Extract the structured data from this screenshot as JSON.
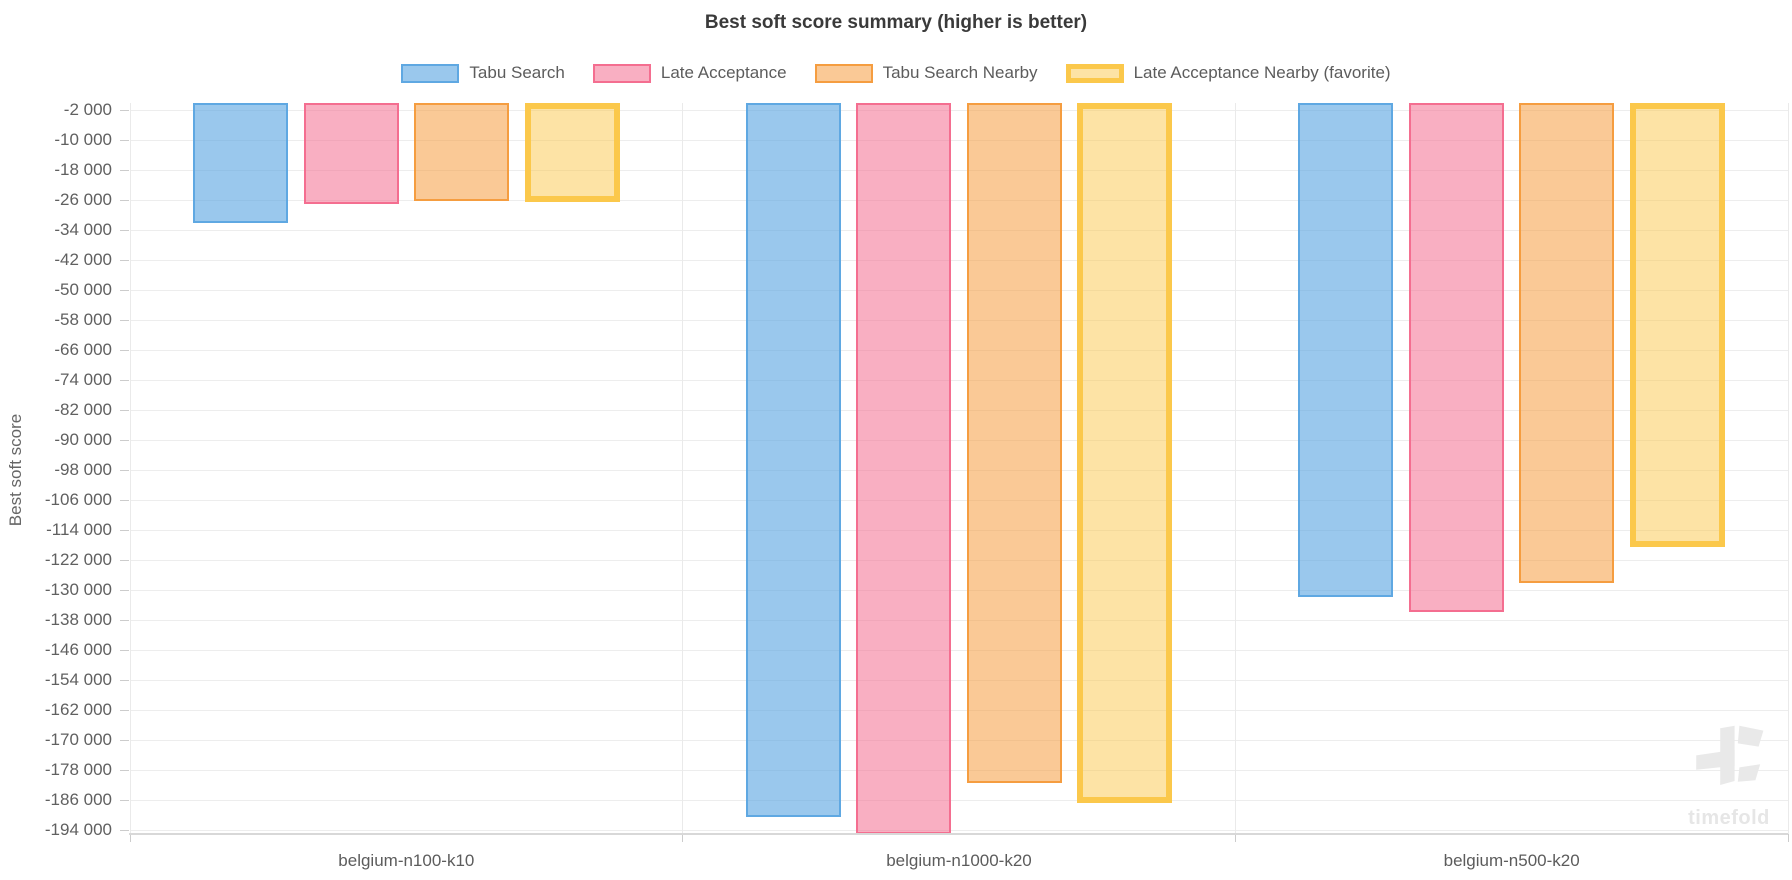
{
  "chart_data": {
    "type": "bar",
    "title": "Best soft score summary (higher is better)",
    "ylabel": "Best soft score",
    "xlabel": "",
    "legend_position": "top",
    "grid": true,
    "categories": [
      "belgium-n100-k10",
      "belgium-n1000-k20",
      "belgium-n500-k20"
    ],
    "series": [
      {
        "name": "Tabu Search",
        "fill": "rgba(95,168,226,0.63)",
        "border": "#5fa8e2",
        "border_width": 2,
        "values": [
          -32100,
          -190500,
          -131900
        ]
      },
      {
        "name": "Late Acceptance",
        "fill": "rgba(244,110,144,0.55)",
        "border": "#f46e90",
        "border_width": 2,
        "values": [
          -27100,
          -195000,
          -135800
        ]
      },
      {
        "name": "Tabu Search Nearby",
        "fill": "rgba(245,157,64,0.55)",
        "border": "#f59d40",
        "border_width": 2,
        "values": [
          -26300,
          -181500,
          -128000
        ]
      },
      {
        "name": "Late Acceptance Nearby (favorite)",
        "fill": "rgba(251,200,75,0.5)",
        "border": "#fbc84b",
        "border_width": 6,
        "values": [
          -26500,
          -186700,
          -118500
        ]
      }
    ],
    "y_axis": {
      "max": 0,
      "min": -195000,
      "first_tick": -2000,
      "tick_step": 8000,
      "tick_labels": [
        "-2 000",
        "-10 000",
        "-18 000",
        "-26 000",
        "-34 000",
        "-42 000",
        "-50 000",
        "-58 000",
        "-66 000",
        "-74 000",
        "-82 000",
        "-90 000",
        "-98 000",
        "-106 000",
        "-114 000",
        "-122 000",
        "-130 000",
        "-138 000",
        "-146 000",
        "-154 000",
        "-162 000",
        "-170 000",
        "-178 000",
        "-186 000",
        "-194 000"
      ]
    }
  },
  "watermark": {
    "text": "timefold"
  }
}
